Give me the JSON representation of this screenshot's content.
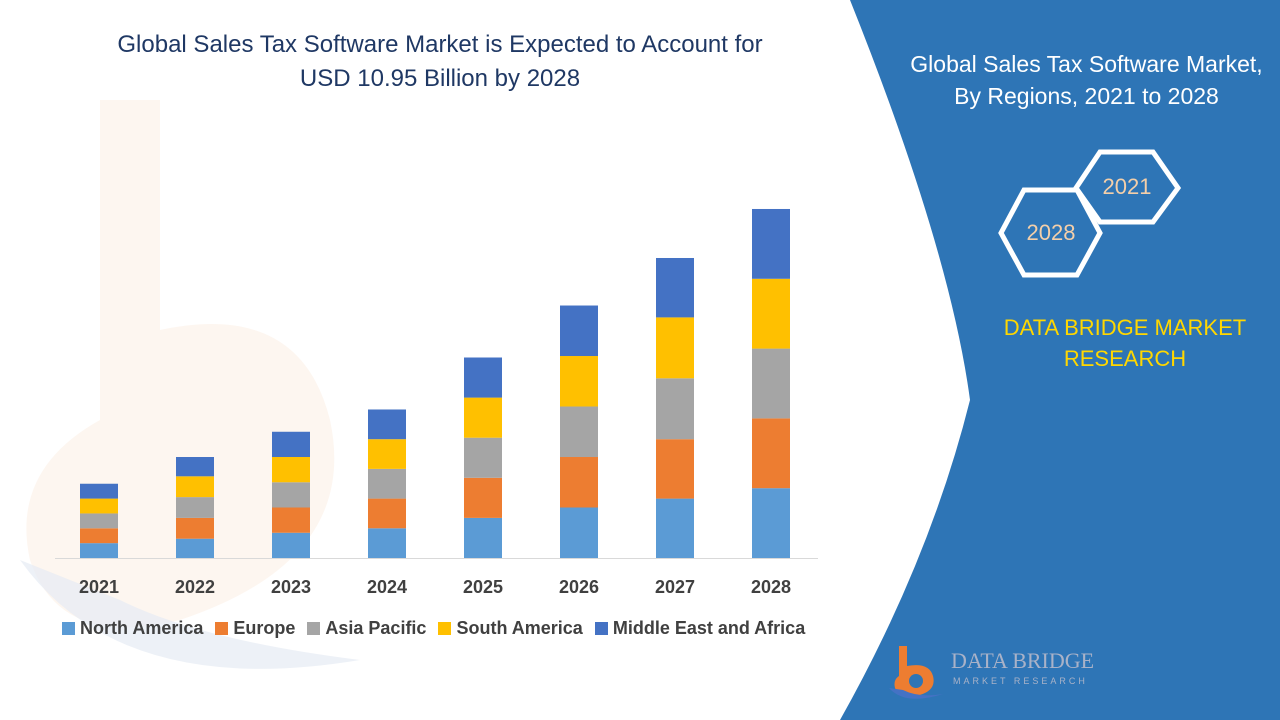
{
  "chart_title": {
    "line1": "Global Sales Tax Software Market is Expected to Account for",
    "line2": "USD 10.95 Billion by 2028"
  },
  "panel": {
    "title_line1": "Global Sales Tax Software Market,",
    "title_line2": "By Regions, 2021 to 2028",
    "hex_start_year": "2021",
    "hex_end_year": "2028",
    "brand_line1": "DATA BRIDGE MARKET",
    "brand_line2": "RESEARCH",
    "background_color": "#2e75b6",
    "brand_color": "#ffd700"
  },
  "logo": {
    "name": "DATA BRIDGE",
    "subtitle": "MARKET RESEARCH",
    "icon": "data-bridge-logo-icon"
  },
  "chart_data": {
    "type": "bar",
    "stacked": true,
    "categories": [
      "2021",
      "2022",
      "2023",
      "2024",
      "2025",
      "2026",
      "2027",
      "2028"
    ],
    "series": [
      {
        "name": "North America",
        "color": "#5b9bd5",
        "values": [
          1.0,
          1.3,
          1.7,
          2.0,
          2.7,
          3.4,
          4.0,
          4.7
        ]
      },
      {
        "name": "Europe",
        "color": "#ed7d31",
        "values": [
          1.0,
          1.4,
          1.7,
          2.0,
          2.7,
          3.4,
          4.0,
          4.7
        ]
      },
      {
        "name": "Asia Pacific",
        "color": "#a5a5a5",
        "values": [
          1.0,
          1.4,
          1.7,
          2.0,
          2.7,
          3.4,
          4.1,
          4.7
        ]
      },
      {
        "name": "South America",
        "color": "#ffc000",
        "values": [
          1.0,
          1.4,
          1.7,
          2.0,
          2.7,
          3.4,
          4.1,
          4.7
        ]
      },
      {
        "name": "Middle East and Africa",
        "color": "#4472c4",
        "values": [
          1.0,
          1.3,
          1.7,
          2.0,
          2.7,
          3.4,
          4.0,
          4.7
        ]
      }
    ],
    "ylim": [
      0,
      27
    ],
    "grid": false,
    "legend_position": "bottom",
    "xlabel": "",
    "ylabel": ""
  }
}
